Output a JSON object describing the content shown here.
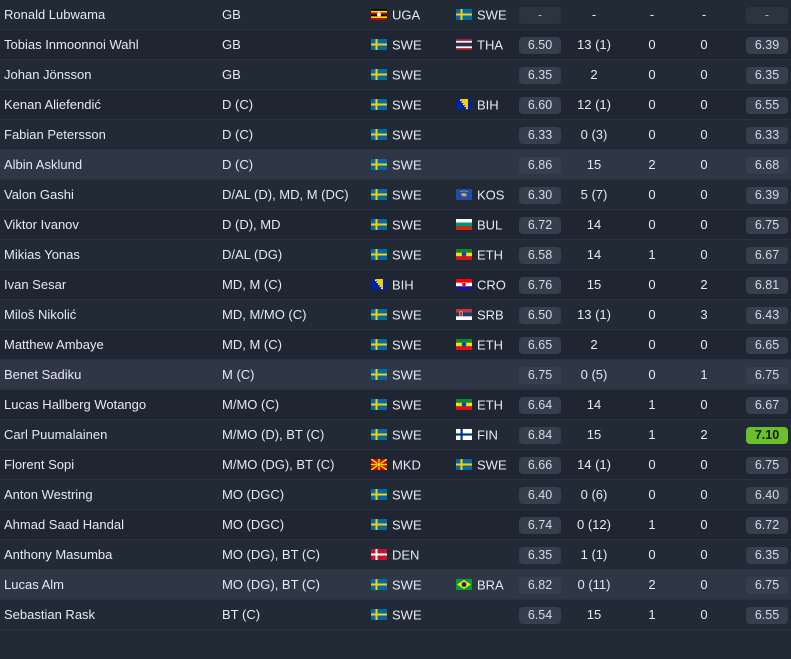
{
  "players": [
    {
      "name": "Ronald Lubwama",
      "pos": "GB",
      "nat1": {
        "code": "UGA",
        "flag": "uganda-flag-icon"
      },
      "nat2": {
        "code": "SWE",
        "flag": "sweden-flag-icon"
      },
      "avg": "-",
      "apps": "-",
      "goals": "-",
      "assists": "-",
      "rating": "-",
      "rating_style": "dash"
    },
    {
      "name": "Tobias Inmoonnoi Wahl",
      "pos": "GB",
      "nat1": {
        "code": "SWE",
        "flag": "sweden-flag-icon"
      },
      "nat2": {
        "code": "THA",
        "flag": "thailand-flag-icon"
      },
      "avg": "6.50",
      "apps": "13 (1)",
      "goals": "0",
      "assists": "0",
      "rating": "6.39"
    },
    {
      "name": "Johan Jönsson",
      "pos": "GB",
      "nat1": {
        "code": "SWE",
        "flag": "sweden-flag-icon"
      },
      "nat2": null,
      "avg": "6.35",
      "apps": "2",
      "goals": "0",
      "assists": "0",
      "rating": "6.35"
    },
    {
      "name": "Kenan Aliefendić",
      "pos": "D (C)",
      "nat1": {
        "code": "SWE",
        "flag": "sweden-flag-icon"
      },
      "nat2": {
        "code": "BIH",
        "flag": "bosnia-flag-icon"
      },
      "avg": "6.60",
      "apps": "12 (1)",
      "goals": "0",
      "assists": "0",
      "rating": "6.55"
    },
    {
      "name": "Fabian Petersson",
      "pos": "D (C)",
      "nat1": {
        "code": "SWE",
        "flag": "sweden-flag-icon"
      },
      "nat2": null,
      "avg": "6.33",
      "apps": "0 (3)",
      "goals": "0",
      "assists": "0",
      "rating": "6.33"
    },
    {
      "name": "Albin Asklund",
      "pos": "D (C)",
      "nat1": {
        "code": "SWE",
        "flag": "sweden-flag-icon"
      },
      "nat2": null,
      "avg": "6.86",
      "apps": "15",
      "goals": "2",
      "assists": "0",
      "rating": "6.68",
      "highlight": true
    },
    {
      "name": "Valon Gashi",
      "pos": "D/AL (D), MD, M (DC)",
      "nat1": {
        "code": "SWE",
        "flag": "sweden-flag-icon"
      },
      "nat2": {
        "code": "KOS",
        "flag": "kosovo-flag-icon"
      },
      "avg": "6.30",
      "apps": "5 (7)",
      "goals": "0",
      "assists": "0",
      "rating": "6.39"
    },
    {
      "name": "Viktor Ivanov",
      "pos": "D (D), MD",
      "nat1": {
        "code": "SWE",
        "flag": "sweden-flag-icon"
      },
      "nat2": {
        "code": "BUL",
        "flag": "bulgaria-flag-icon"
      },
      "avg": "6.72",
      "apps": "14",
      "goals": "0",
      "assists": "0",
      "rating": "6.75"
    },
    {
      "name": "Mikias Yonas",
      "pos": "D/AL (DG)",
      "nat1": {
        "code": "SWE",
        "flag": "sweden-flag-icon"
      },
      "nat2": {
        "code": "ETH",
        "flag": "ethiopia-flag-icon"
      },
      "avg": "6.58",
      "apps": "14",
      "goals": "1",
      "assists": "0",
      "rating": "6.67"
    },
    {
      "name": "Ivan Sesar",
      "pos": "MD, M (C)",
      "nat1": {
        "code": "BIH",
        "flag": "bosnia-flag-icon"
      },
      "nat2": {
        "code": "CRO",
        "flag": "croatia-flag-icon"
      },
      "avg": "6.76",
      "apps": "15",
      "goals": "0",
      "assists": "2",
      "rating": "6.81"
    },
    {
      "name": "Miloš Nikolić",
      "pos": "MD, M/MO (C)",
      "nat1": {
        "code": "SWE",
        "flag": "sweden-flag-icon"
      },
      "nat2": {
        "code": "SRB",
        "flag": "serbia-flag-icon"
      },
      "avg": "6.50",
      "apps": "13 (1)",
      "goals": "0",
      "assists": "3",
      "rating": "6.43"
    },
    {
      "name": "Matthew Ambaye",
      "pos": "MD, M (C)",
      "nat1": {
        "code": "SWE",
        "flag": "sweden-flag-icon"
      },
      "nat2": {
        "code": "ETH",
        "flag": "ethiopia-flag-icon"
      },
      "avg": "6.65",
      "apps": "2",
      "goals": "0",
      "assists": "0",
      "rating": "6.65"
    },
    {
      "name": "Benet Sadiku",
      "pos": "M (C)",
      "nat1": {
        "code": "SWE",
        "flag": "sweden-flag-icon"
      },
      "nat2": null,
      "avg": "6.75",
      "apps": "0 (5)",
      "goals": "0",
      "assists": "1",
      "rating": "6.75",
      "highlight": true
    },
    {
      "name": "Lucas Hallberg Wotango",
      "pos": "M/MO (C)",
      "nat1": {
        "code": "SWE",
        "flag": "sweden-flag-icon"
      },
      "nat2": {
        "code": "ETH",
        "flag": "ethiopia-flag-icon"
      },
      "avg": "6.64",
      "apps": "14",
      "goals": "1",
      "assists": "0",
      "rating": "6.67"
    },
    {
      "name": "Carl Puumalainen",
      "pos": "M/MO (D), BT (C)",
      "nat1": {
        "code": "SWE",
        "flag": "sweden-flag-icon"
      },
      "nat2": {
        "code": "FIN",
        "flag": "finland-flag-icon"
      },
      "avg": "6.84",
      "apps": "15",
      "goals": "1",
      "assists": "2",
      "rating": "7.10",
      "rating_style": "green"
    },
    {
      "name": "Florent Sopi",
      "pos": "M/MO (DG), BT (C)",
      "nat1": {
        "code": "MKD",
        "flag": "north-macedonia-flag-icon"
      },
      "nat2": {
        "code": "SWE",
        "flag": "sweden-flag-icon"
      },
      "avg": "6.66",
      "apps": "14 (1)",
      "goals": "0",
      "assists": "0",
      "rating": "6.75"
    },
    {
      "name": "Anton Westring",
      "pos": "MO (DGC)",
      "nat1": {
        "code": "SWE",
        "flag": "sweden-flag-icon"
      },
      "nat2": null,
      "avg": "6.40",
      "apps": "0 (6)",
      "goals": "0",
      "assists": "0",
      "rating": "6.40"
    },
    {
      "name": "Ahmad Saad Handal",
      "pos": "MO (DGC)",
      "nat1": {
        "code": "SWE",
        "flag": "sweden-flag-icon"
      },
      "nat2": null,
      "avg": "6.74",
      "apps": "0 (12)",
      "goals": "1",
      "assists": "0",
      "rating": "6.72"
    },
    {
      "name": "Anthony Masumba",
      "pos": "MO (DG), BT (C)",
      "nat1": {
        "code": "DEN",
        "flag": "denmark-flag-icon"
      },
      "nat2": null,
      "avg": "6.35",
      "apps": "1 (1)",
      "goals": "0",
      "assists": "0",
      "rating": "6.35"
    },
    {
      "name": "Lucas Alm",
      "pos": "MO (DG), BT (C)",
      "nat1": {
        "code": "SWE",
        "flag": "sweden-flag-icon"
      },
      "nat2": {
        "code": "BRA",
        "flag": "brazil-flag-icon"
      },
      "avg": "6.82",
      "apps": "0 (11)",
      "goals": "2",
      "assists": "0",
      "rating": "6.75",
      "highlight": true
    },
    {
      "name": "Sebastian Rask",
      "pos": "BT (C)",
      "nat1": {
        "code": "SWE",
        "flag": "sweden-flag-icon"
      },
      "nat2": null,
      "avg": "6.54",
      "apps": "15",
      "goals": "1",
      "assists": "0",
      "rating": "6.55"
    }
  ]
}
